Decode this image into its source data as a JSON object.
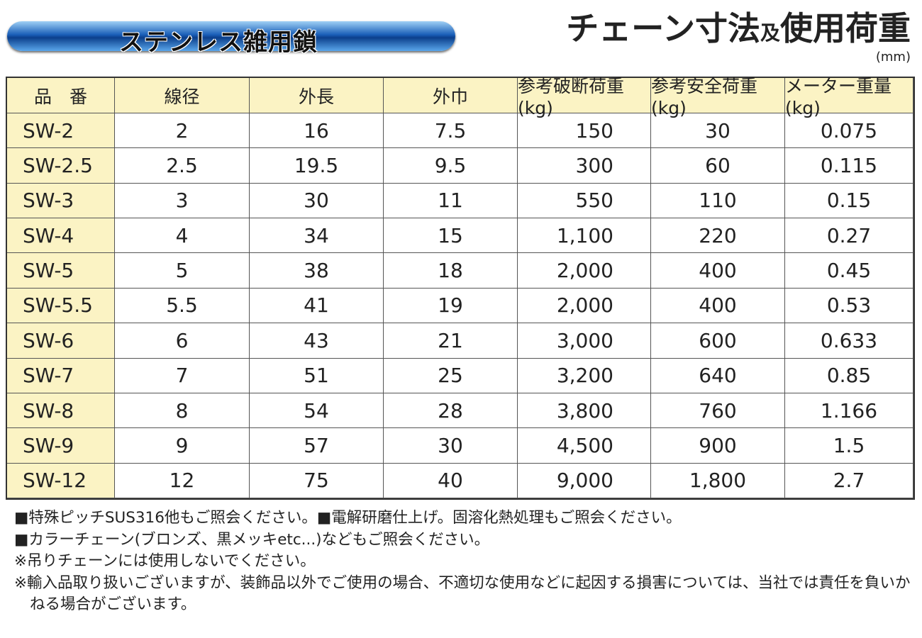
{
  "header": {
    "banner": "ステンレス雑用鎖",
    "title": [
      "チェーン寸法",
      "及",
      "使用荷重"
    ],
    "unit": "(mm)"
  },
  "table": {
    "columns": [
      "品　番",
      "線径",
      "外長",
      "外巾",
      "参考破断荷重(kg)",
      "参考安全荷重(kg)",
      "メーター重量(kg)"
    ],
    "rows": [
      [
        "SW-2",
        "2",
        "16",
        "7.5",
        "150",
        "30",
        "0.075"
      ],
      [
        "SW-2.5",
        "2.5",
        "19.5",
        "9.5",
        "300",
        "60",
        "0.115"
      ],
      [
        "SW-3",
        "3",
        "30",
        "11",
        "550",
        "110",
        "0.15"
      ],
      [
        "SW-4",
        "4",
        "34",
        "15",
        "1,100",
        "220",
        "0.27"
      ],
      [
        "SW-5",
        "5",
        "38",
        "18",
        "2,000",
        "400",
        "0.45"
      ],
      [
        "SW-5.5",
        "5.5",
        "41",
        "19",
        "2,000",
        "400",
        "0.53"
      ],
      [
        "SW-6",
        "6",
        "43",
        "21",
        "3,000",
        "600",
        "0.633"
      ],
      [
        "SW-7",
        "7",
        "51",
        "25",
        "3,200",
        "640",
        "0.85"
      ],
      [
        "SW-8",
        "8",
        "54",
        "28",
        "3,800",
        "760",
        "1.166"
      ],
      [
        "SW-9",
        "9",
        "57",
        "30",
        "4,500",
        "900",
        "1.5"
      ],
      [
        "SW-12",
        "12",
        "75",
        "40",
        "9,000",
        "1,800",
        "2.7"
      ]
    ]
  },
  "notes": [
    "■特殊ピッチSUS316他もご照会ください。■電解研磨仕上げ。固溶化熱処理もご照会ください。",
    "■カラーチェーン(ブロンズ、黒メッキetc...)などもご照会ください。",
    "※吊りチェーンには使用しないでください。",
    "※輸入品取り扱いございますが、装飾品以外でご使用の場合、不適切な使用などに起因する損害については、当社では責任を負いかねる場合がございます。"
  ]
}
